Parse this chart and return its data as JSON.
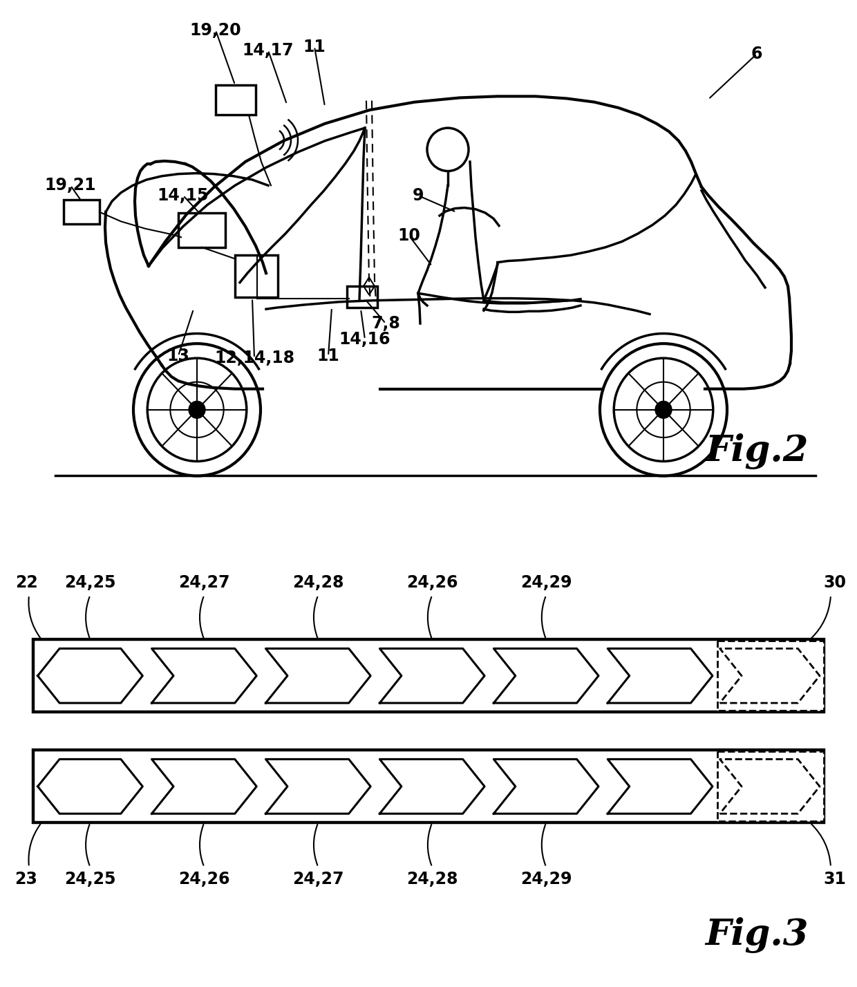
{
  "background_color": "#ffffff",
  "line_color": "#000000",
  "fig2_label": "Fig.2",
  "fig3_label": "Fig.3",
  "lw_main": 2.5,
  "lw_thin": 1.5,
  "car_label_fontsize": 17,
  "fig_label_fontsize": 38,
  "strip_label_fontsize": 17,
  "strip1_top_labels": [
    "22",
    "24,25",
    "24,27",
    "24,28",
    "24,26",
    "24,29",
    "30"
  ],
  "strip2_bot_labels": [
    "23",
    "24,25",
    "24,26",
    "24,27",
    "24,28",
    "24,29",
    "31"
  ]
}
